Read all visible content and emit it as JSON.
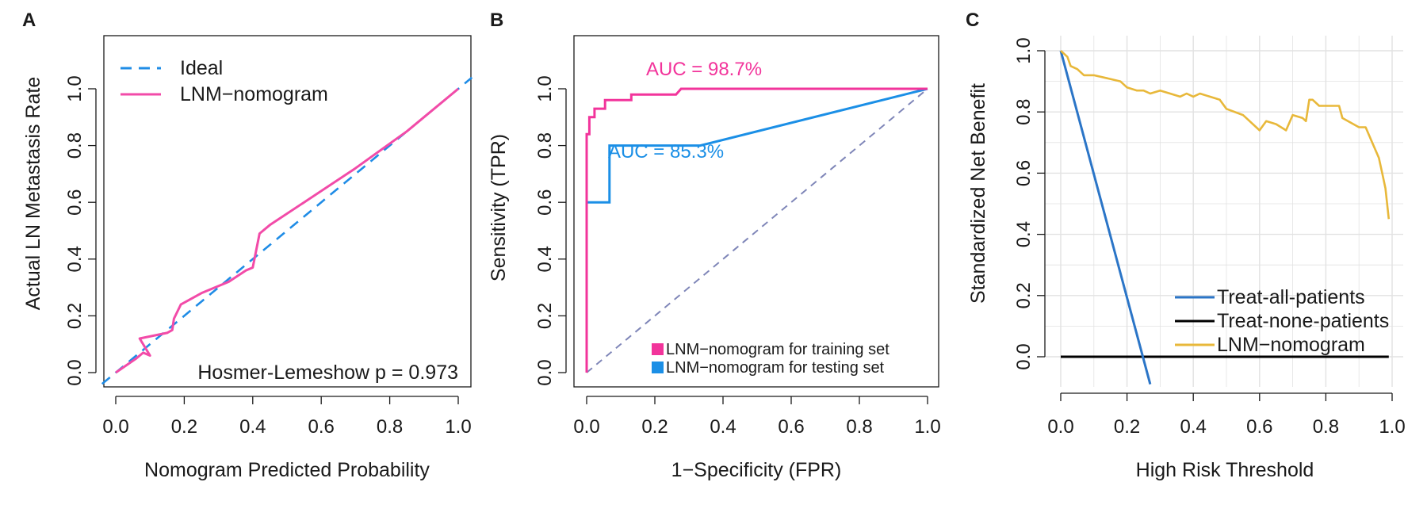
{
  "panels": [
    {
      "letter": "A",
      "xlabel": "Nomogram Predicted Probability",
      "ylabel": "Actual LN Metastasis Rate",
      "legend": [
        "Ideal",
        "LNM−nomogram"
      ],
      "annotation": "Hosmer-Lemeshow p = 0.973"
    },
    {
      "letter": "B",
      "xlabel": "1−Specificity (FPR)",
      "ylabel": "Sensitivity (TPR)",
      "legend": [
        "LNM−nomogram for training set",
        "LNM−nomogram for testing set"
      ],
      "auc_training": "AUC = 98.7%",
      "auc_testing": "AUC = 85.3%"
    },
    {
      "letter": "C",
      "xlabel": "High Risk Threshold",
      "ylabel": "Standardized Net Benefit",
      "legend": [
        "Treat-all-patients",
        "Treat-none-patients",
        "LNM−nomogram"
      ]
    }
  ],
  "colors": {
    "ideal": "#1f8ce6",
    "nomogram_pink": "#f24ba8",
    "training": "#f2349b",
    "testing": "#1b8fe6",
    "diagonal": "#7f86b8",
    "treat_all": "#2b75c7",
    "treat_none": "#000000",
    "dca_nomogram": "#e8b83a",
    "grid": "#e2e2e2"
  },
  "chart_data": [
    {
      "type": "line",
      "title": "",
      "xlabel": "Nomogram Predicted Probability",
      "ylabel": "Actual LN Metastasis Rate",
      "xlim": [
        0,
        1
      ],
      "ylim": [
        0,
        1
      ],
      "xticks": [
        "0.0",
        "0.2",
        "0.4",
        "0.6",
        "0.8",
        "1.0"
      ],
      "yticks": [
        "0.0",
        "0.2",
        "0.4",
        "0.6",
        "0.8",
        "1.0"
      ],
      "grid": false,
      "legend_position": "top-left",
      "series": [
        {
          "name": "Ideal",
          "style": "dashed",
          "x": [
            -0.04,
            1.04
          ],
          "y": [
            -0.04,
            1.04
          ]
        },
        {
          "name": "LNM−nomogram",
          "style": "solid",
          "x": [
            0.0,
            0.06,
            0.08,
            0.1,
            0.07,
            0.15,
            0.165,
            0.17,
            0.19,
            0.25,
            0.33,
            0.38,
            0.4,
            0.41,
            0.42,
            0.45,
            0.55,
            0.7,
            0.85,
            1.0
          ],
          "y": [
            0.0,
            0.05,
            0.07,
            0.06,
            0.12,
            0.14,
            0.15,
            0.19,
            0.24,
            0.28,
            0.32,
            0.36,
            0.37,
            0.43,
            0.49,
            0.52,
            0.6,
            0.72,
            0.85,
            1.0
          ]
        }
      ]
    },
    {
      "type": "line",
      "title": "",
      "xlabel": "1−Specificity (FPR)",
      "ylabel": "Sensitivity (TPR)",
      "xlim": [
        0,
        1
      ],
      "ylim": [
        0,
        1
      ],
      "xticks": [
        "0.0",
        "0.2",
        "0.4",
        "0.6",
        "0.8",
        "1.0"
      ],
      "yticks": [
        "0.0",
        "0.2",
        "0.4",
        "0.6",
        "0.8",
        "1.0"
      ],
      "grid": false,
      "legend_position": "bottom-right",
      "series": [
        {
          "name": "LNM−nomogram for training set",
          "x": [
            0,
            0,
            0.008,
            0.008,
            0.023,
            0.023,
            0.031,
            0.031,
            0.054,
            0.054,
            0.077,
            0.077,
            0.131,
            0.131,
            0.262,
            0.277,
            1.0
          ],
          "y": [
            0,
            0.84,
            0.84,
            0.9,
            0.9,
            0.93,
            0.93,
            0.93,
            0.93,
            0.96,
            0.96,
            0.96,
            0.96,
            0.98,
            0.98,
            1.0,
            1.0
          ]
        },
        {
          "name": "LNM−nomogram for testing set",
          "x": [
            0,
            0,
            0.067,
            0.067,
            0.333,
            1.0
          ],
          "y": [
            0,
            0.6,
            0.6,
            0.8,
            0.8,
            1.0
          ]
        },
        {
          "name": "",
          "style": "dashed",
          "x": [
            0,
            1
          ],
          "y": [
            0,
            1
          ]
        }
      ],
      "annotations": [
        "AUC = 98.7%",
        "AUC = 85.3%"
      ]
    },
    {
      "type": "line",
      "title": "",
      "xlabel": "High Risk Threshold",
      "ylabel": "Standardized Net Benefit",
      "xlim": [
        0,
        1
      ],
      "ylim": [
        -0.08,
        1.0
      ],
      "xticks": [
        "0.0",
        "0.2",
        "0.4",
        "0.6",
        "0.8",
        "1.0"
      ],
      "yticks": [
        "0.0",
        "0.2",
        "0.4",
        "0.6",
        "0.8",
        "1.0"
      ],
      "grid": true,
      "legend_position": "bottom-right",
      "series": [
        {
          "name": "Treat-all-patients",
          "x": [
            0,
            0.27
          ],
          "y": [
            1.0,
            -0.09
          ]
        },
        {
          "name": "Treat-none-patients",
          "x": [
            0,
            0.99
          ],
          "y": [
            0,
            0
          ]
        },
        {
          "name": "LNM−nomogram",
          "x": [
            0,
            0.02,
            0.03,
            0.05,
            0.07,
            0.1,
            0.14,
            0.18,
            0.2,
            0.23,
            0.25,
            0.27,
            0.3,
            0.33,
            0.36,
            0.38,
            0.4,
            0.42,
            0.45,
            0.48,
            0.5,
            0.55,
            0.57,
            0.59,
            0.6,
            0.62,
            0.65,
            0.68,
            0.7,
            0.73,
            0.74,
            0.75,
            0.76,
            0.78,
            0.81,
            0.84,
            0.85,
            0.9,
            0.92,
            0.94,
            0.96,
            0.97,
            0.98,
            0.99
          ],
          "y": [
            1.0,
            0.98,
            0.95,
            0.94,
            0.92,
            0.92,
            0.91,
            0.9,
            0.88,
            0.87,
            0.87,
            0.86,
            0.87,
            0.86,
            0.85,
            0.86,
            0.85,
            0.86,
            0.85,
            0.84,
            0.81,
            0.79,
            0.77,
            0.75,
            0.74,
            0.77,
            0.76,
            0.74,
            0.79,
            0.78,
            0.77,
            0.84,
            0.84,
            0.82,
            0.82,
            0.82,
            0.78,
            0.75,
            0.75,
            0.7,
            0.65,
            0.6,
            0.55,
            0.45
          ]
        }
      ]
    }
  ]
}
